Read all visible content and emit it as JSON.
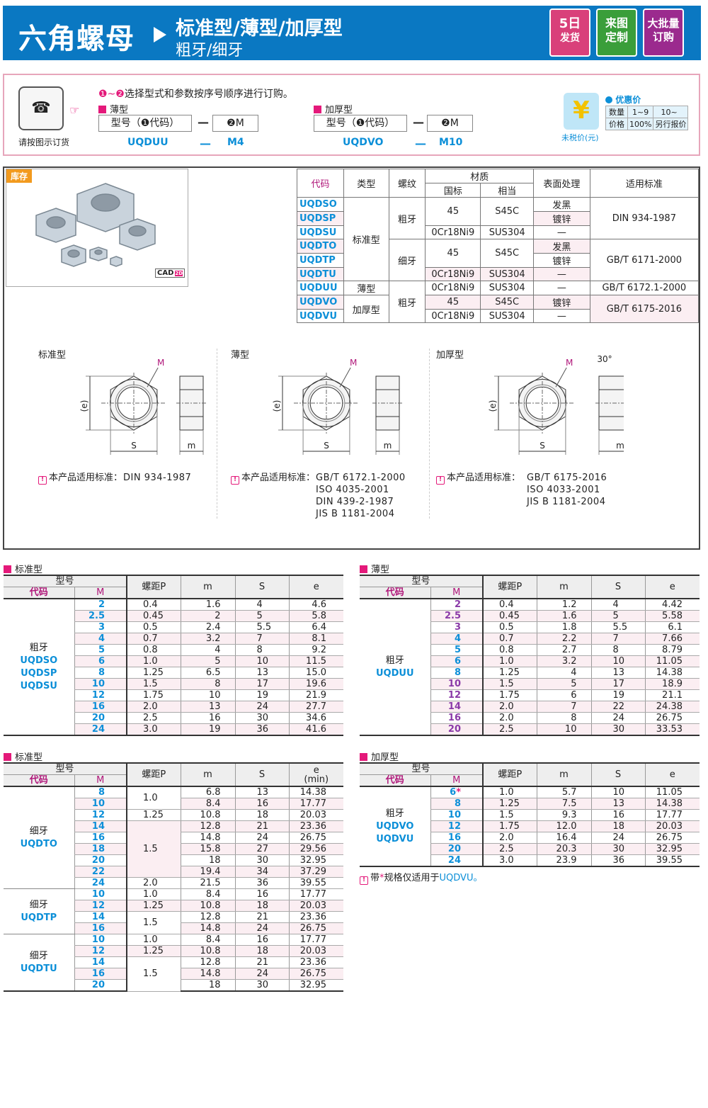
{
  "header": {
    "title": "六角螺母",
    "subtitle_types": "标准型/薄型/加厚型",
    "subtitle_threads": "粗牙/细牙",
    "badges": [
      {
        "line1": "5日",
        "line2": "发货",
        "color": "#d9407a"
      },
      {
        "line1": "来图",
        "line2": "定制",
        "color": "#3a9e3a"
      },
      {
        "line1": "大批量",
        "line2": "订购",
        "color": "#9b2a8e"
      }
    ]
  },
  "order": {
    "phone_caption": "请按图示订货",
    "instruction": "选择型式和参数按序号顺序进行订购。",
    "instruction_prefix": "❶~❷",
    "examples": [
      {
        "label": "薄型",
        "box1": "型号（❶代码）",
        "box2": "❷M",
        "dash": "—",
        "code": "UQDUU",
        "m": "M4"
      },
      {
        "label": "加厚型",
        "box1": "型号（❶代码）",
        "box2": "❷M",
        "dash": "—",
        "code": "UQDVO",
        "m": "M10"
      }
    ],
    "price": {
      "title": "优惠价",
      "caption": "未税价(元)",
      "qty_label": "数量",
      "qty1": "1~9",
      "qty2": "10~",
      "price_label": "价格",
      "price1": "100%",
      "price2": "另行报价"
    }
  },
  "product": {
    "stock_badge": "库存",
    "cad_label": "CAD",
    "spec_table": {
      "headers": {
        "code": "代码",
        "type": "类型",
        "thread": "螺纹",
        "material": "材质",
        "gb": "国标",
        "equiv": "相当",
        "surface": "表面处理",
        "standard": "适用标准"
      },
      "codes": [
        "UQDSO",
        "UQDSP",
        "UQDSU",
        "UQDTO",
        "UQDTP",
        "UQDTU",
        "UQDUU",
        "UQDVO",
        "UQDVU"
      ],
      "types": {
        "standard": "标准型",
        "thin": "薄型",
        "thick": "加厚型"
      },
      "threads": {
        "coarse": "粗牙",
        "fine": "细牙"
      },
      "materials": {
        "steel_gb": "45",
        "steel_eq": "S45C",
        "ss_gb": "0Cr18Ni9",
        "ss_eq": "SUS304"
      },
      "surfaces": {
        "black": "发黑",
        "zinc": "镀锌",
        "none": "—"
      },
      "standards": [
        "DIN 934-1987",
        "GB/T 6171-2000",
        "GB/T 6172.1-2000",
        "GB/T 6175-2016"
      ]
    },
    "drawings": [
      {
        "title": "标准型",
        "standards_label": "本产品适用标准：",
        "standards": "DIN 934-1987"
      },
      {
        "title": "薄型",
        "standards_label": "本产品适用标准：",
        "standards": "GB/T 6172.1-2000\nISO 4035-2001\nDIN 439-2-1987\nJIS B 1181-2004"
      },
      {
        "title": "加厚型",
        "standards_label": "本产品适用标准：",
        "standards": "GB/T 6175-2016\nISO 4033-2001\nJIS B 1181-2004"
      }
    ],
    "dim_labels": {
      "M": "M",
      "e": "(e)",
      "S": "S",
      "m": "m",
      "angle": "30°"
    }
  },
  "tables": [
    {
      "title": "标准型",
      "headers": {
        "model": "型号",
        "code": "代码",
        "M": "M",
        "P": "螺距P",
        "m": "m",
        "S": "S",
        "e": "e",
        "e_sub": ""
      },
      "merge_pitch": false,
      "groups": [
        {
          "thread": "粗牙",
          "codes": [
            "UQDSO",
            "UQDSP",
            "UQDSU"
          ],
          "rows": [
            [
              "2",
              "0.4",
              "1.6",
              "4",
              "4.6"
            ],
            [
              "2.5",
              "0.45",
              "2",
              "5",
              "5.8"
            ],
            [
              "3",
              "0.5",
              "2.4",
              "5.5",
              "6.4"
            ],
            [
              "4",
              "0.7",
              "3.2",
              "7",
              "8.1"
            ],
            [
              "5",
              "0.8",
              "4",
              "8",
              "9.2"
            ],
            [
              "6",
              "1.0",
              "5",
              "10",
              "11.5"
            ],
            [
              "8",
              "1.25",
              "6.5",
              "13",
              "15.0"
            ],
            [
              "10",
              "1.5",
              "8",
              "17",
              "19.6"
            ],
            [
              "12",
              "1.75",
              "10",
              "19",
              "21.9"
            ],
            [
              "16",
              "2.0",
              "13",
              "24",
              "27.7"
            ],
            [
              "20",
              "2.5",
              "16",
              "30",
              "34.6"
            ],
            [
              "24",
              "3.0",
              "19",
              "36",
              "41.6"
            ]
          ]
        }
      ]
    },
    {
      "title": "薄型",
      "headers": {
        "model": "型号",
        "code": "代码",
        "M": "M",
        "P": "螺距P",
        "m": "m",
        "S": "S",
        "e": "e",
        "e_sub": ""
      },
      "merge_pitch": false,
      "purple_m": [
        "2",
        "2.5",
        "3",
        "10",
        "12",
        "14",
        "16",
        "20"
      ],
      "groups": [
        {
          "thread": "粗牙",
          "codes": [
            "UQDUU"
          ],
          "rows": [
            [
              "2",
              "0.4",
              "1.2",
              "4",
              "4.42"
            ],
            [
              "2.5",
              "0.45",
              "1.6",
              "5",
              "5.58"
            ],
            [
              "3",
              "0.5",
              "1.8",
              "5.5",
              "6.1"
            ],
            [
              "4",
              "0.7",
              "2.2",
              "7",
              "7.66"
            ],
            [
              "5",
              "0.8",
              "2.7",
              "8",
              "8.79"
            ],
            [
              "6",
              "1.0",
              "3.2",
              "10",
              "11.05"
            ],
            [
              "8",
              "1.25",
              "4",
              "13",
              "14.38"
            ],
            [
              "10",
              "1.5",
              "5",
              "17",
              "18.9"
            ],
            [
              "12",
              "1.75",
              "6",
              "19",
              "21.1"
            ],
            [
              "14",
              "2.0",
              "7",
              "22",
              "24.38"
            ],
            [
              "16",
              "2.0",
              "8",
              "24",
              "26.75"
            ],
            [
              "20",
              "2.5",
              "10",
              "30",
              "33.53"
            ]
          ]
        }
      ]
    },
    {
      "title": "标准型",
      "headers": {
        "model": "型号",
        "code": "代码",
        "M": "M",
        "P": "螺距P",
        "m": "m",
        "S": "S",
        "e": "e",
        "e_sub": "(min)"
      },
      "merge_pitch": true,
      "groups": [
        {
          "thread": "细牙",
          "codes": [
            "UQDTO"
          ],
          "rows": [
            [
              "8",
              "1.0",
              "6.8",
              "13",
              "14.38"
            ],
            [
              "10",
              "1.0",
              "8.4",
              "16",
              "17.77"
            ],
            [
              "12",
              "1.25",
              "10.8",
              "18",
              "20.03"
            ],
            [
              "14",
              "1.5",
              "12.8",
              "21",
              "23.36"
            ],
            [
              "16",
              "1.5",
              "14.8",
              "24",
              "26.75"
            ],
            [
              "18",
              "1.5",
              "15.8",
              "27",
              "29.56"
            ],
            [
              "20",
              "1.5",
              "18",
              "30",
              "32.95"
            ],
            [
              "22",
              "1.5",
              "19.4",
              "34",
              "37.29"
            ],
            [
              "24",
              "2.0",
              "21.5",
              "36",
              "39.55"
            ]
          ]
        },
        {
          "thread": "细牙",
          "codes": [
            "UQDTP"
          ],
          "rows": [
            [
              "10",
              "1.0",
              "8.4",
              "16",
              "17.77"
            ],
            [
              "12",
              "1.25",
              "10.8",
              "18",
              "20.03"
            ],
            [
              "14",
              "1.5",
              "12.8",
              "21",
              "23.36"
            ],
            [
              "16",
              "1.5",
              "14.8",
              "24",
              "26.75"
            ]
          ]
        },
        {
          "thread": "细牙",
          "codes": [
            "UQDTU"
          ],
          "rows": [
            [
              "10",
              "1.0",
              "8.4",
              "16",
              "17.77"
            ],
            [
              "12",
              "1.25",
              "10.8",
              "18",
              "20.03"
            ],
            [
              "14",
              "1.5",
              "12.8",
              "21",
              "23.36"
            ],
            [
              "16",
              "1.5",
              "14.8",
              "24",
              "26.75"
            ],
            [
              "20",
              "1.5",
              "18",
              "30",
              "32.95"
            ]
          ]
        }
      ]
    },
    {
      "title": "加厚型",
      "headers": {
        "model": "型号",
        "code": "代码",
        "M": "M",
        "P": "螺距P",
        "m": "m",
        "S": "S",
        "e": "e",
        "e_sub": ""
      },
      "merge_pitch": false,
      "groups": [
        {
          "thread": "粗牙",
          "codes": [
            "UQDVO",
            "UQDVU"
          ],
          "rows": [
            [
              "6*",
              "1.0",
              "5.7",
              "10",
              "11.05"
            ],
            [
              "8",
              "1.25",
              "7.5",
              "13",
              "14.38"
            ],
            [
              "10",
              "1.5",
              "9.3",
              "16",
              "17.77"
            ],
            [
              "12",
              "1.75",
              "12.0",
              "18",
              "20.03"
            ],
            [
              "16",
              "2.0",
              "16.4",
              "24",
              "26.75"
            ],
            [
              "20",
              "2.5",
              "20.3",
              "30",
              "32.95"
            ],
            [
              "24",
              "3.0",
              "23.9",
              "36",
              "39.55"
            ]
          ]
        }
      ],
      "note": {
        "prefix": "带",
        "star": "*",
        "text": "规格仅适用于",
        "code": "UQDVU",
        "end": "。"
      }
    }
  ],
  "colors": {
    "header_blue": "#0a78c2",
    "code_blue": "#0c8fd8",
    "accent_pink": "#e4197a",
    "purple": "#9a1e88",
    "row_pink": "#fbeef2"
  }
}
